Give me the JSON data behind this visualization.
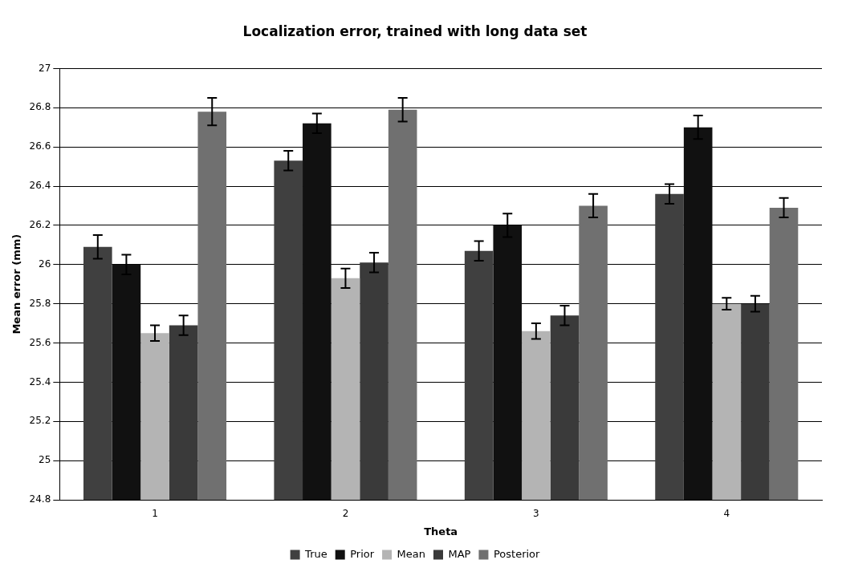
{
  "chart_data": {
    "type": "bar",
    "title": "Localization error, trained with long data set",
    "xlabel": "Theta",
    "ylabel": "Mean error (mm)",
    "categories": [
      "1",
      "2",
      "3",
      "4"
    ],
    "series": [
      {
        "name": "True",
        "color": "#404040",
        "values": [
          26.09,
          26.53,
          26.07,
          26.36
        ],
        "errors": [
          0.06,
          0.05,
          0.05,
          0.05
        ]
      },
      {
        "name": "Prior",
        "color": "#111111",
        "values": [
          26.0,
          26.72,
          26.2,
          26.7
        ],
        "errors": [
          0.05,
          0.05,
          0.06,
          0.06
        ]
      },
      {
        "name": "Mean",
        "color": "#b4b4b4",
        "values": [
          25.65,
          25.93,
          25.66,
          25.8
        ],
        "errors": [
          0.04,
          0.05,
          0.04,
          0.03
        ]
      },
      {
        "name": "MAP",
        "color": "#3a3a3a",
        "values": [
          25.69,
          26.01,
          25.74,
          25.8
        ],
        "errors": [
          0.05,
          0.05,
          0.05,
          0.04
        ]
      },
      {
        "name": "Posterior",
        "color": "#707070",
        "values": [
          26.78,
          26.79,
          26.3,
          26.29
        ],
        "errors": [
          0.07,
          0.06,
          0.06,
          0.05
        ]
      }
    ],
    "ylim": [
      24.8,
      27
    ],
    "yticks": [
      24.8,
      25,
      25.2,
      25.4,
      25.6,
      25.8,
      26,
      26.2,
      26.4,
      26.6,
      26.8,
      27
    ],
    "grid": "y",
    "legend": "bottom"
  }
}
